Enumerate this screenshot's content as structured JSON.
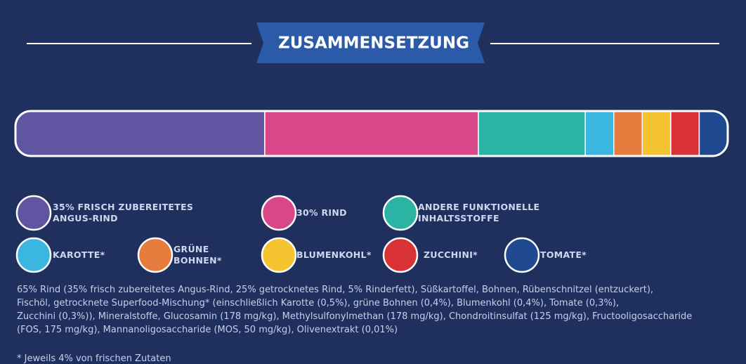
{
  "header": {
    "title": "ZUSAMMENSETZUNG"
  },
  "legend": {
    "items": [
      {
        "label_lines": [
          "35% FRISCH ZUBEREITETES",
          "ANGUS-RIND"
        ],
        "color": "#5f55a0",
        "share": 35
      },
      {
        "label_lines": [
          "30% RIND"
        ],
        "color": "#d9468a",
        "share": 30
      },
      {
        "label_lines": [
          "ANDERE FUNKTIONELLE",
          "INHALTSSTOFFE"
        ],
        "color": "#2bb3a3",
        "share": 15
      },
      {
        "label_lines": [
          "KAROTTE*"
        ],
        "color": "#3ab6e0",
        "share": 4
      },
      {
        "label_lines": [
          "GRÜNE",
          "BOHNEN*"
        ],
        "color": "#e87c3e",
        "share": 4
      },
      {
        "label_lines": [
          "BLUMENKOHL*"
        ],
        "color": "#f4c431",
        "share": 4
      },
      {
        "label_lines": [
          "ZUCCHINI*"
        ],
        "color": "#d93236",
        "share": 4
      },
      {
        "label_lines": [
          "TOMATE*"
        ],
        "color": "#1f4a8f",
        "share": 4
      }
    ]
  },
  "description": {
    "lines": [
      "65% Rind (35% frisch zubereitetes Angus-Rind, 25% getrocknetes Rind, 5% Rinderfett), Süßkartoffel, Bohnen, Rübenschnitzel (entzuckert),",
      "Fischöl, getrocknete Superfood-Mischung* (einschließlich Karotte (0,5%), grüne Bohnen (0,4%), Blumenkohl (0,4%), Tomate (0,3%),",
      "Zucchini (0,3%)), Mineralstoffe, Glucosamin (178 mg/kg), Methylsulfonylmethan (178 mg/kg), Chondroitinsulfat (125 mg/kg), Fructooligosaccharide",
      "(FOS, 175 mg/kg), Mannanoligosaccharide (MOS, 50 mg/kg), Olivenextrakt (0,01%)"
    ]
  },
  "footnote": "* Jeweils 4% von frischen Zutaten"
}
